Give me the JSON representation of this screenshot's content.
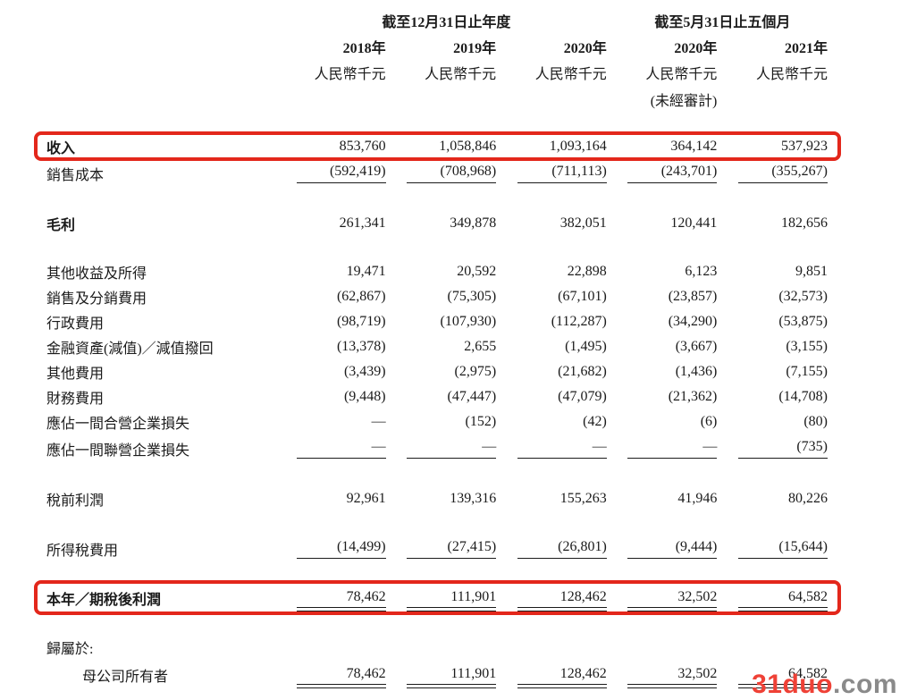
{
  "header": {
    "group_annual": "截至12月31日止年度",
    "group_five_months": "截至5月31日止五個月",
    "columns": [
      {
        "year": "2018年",
        "unit": "人民幣千元",
        "note": ""
      },
      {
        "year": "2019年",
        "unit": "人民幣千元",
        "note": ""
      },
      {
        "year": "2020年",
        "unit": "人民幣千元",
        "note": ""
      },
      {
        "year": "2020年",
        "unit": "人民幣千元",
        "note": "(未經審計)"
      },
      {
        "year": "2021年",
        "unit": "人民幣千元",
        "note": ""
      }
    ]
  },
  "table": {
    "rows": [
      {
        "label": "收入",
        "values": [
          "853,760",
          "1,058,846",
          "1,093,164",
          "364,142",
          "537,923"
        ],
        "bold": true,
        "highlight": true
      },
      {
        "label": "銷售成本",
        "values": [
          "(592,419)",
          "(708,968)",
          "(711,113)",
          "(243,701)",
          "(355,267)"
        ],
        "rule": "single"
      },
      {
        "spacer": 26
      },
      {
        "label": "毛利",
        "values": [
          "261,341",
          "349,878",
          "382,051",
          "120,441",
          "182,656"
        ],
        "bold": true
      },
      {
        "spacer": 26
      },
      {
        "label": "其他收益及所得",
        "values": [
          "19,471",
          "20,592",
          "22,898",
          "6,123",
          "9,851"
        ]
      },
      {
        "label": "銷售及分銷費用",
        "values": [
          "(62,867)",
          "(75,305)",
          "(67,101)",
          "(23,857)",
          "(32,573)"
        ]
      },
      {
        "label": "行政費用",
        "values": [
          "(98,719)",
          "(107,930)",
          "(112,287)",
          "(34,290)",
          "(53,875)"
        ]
      },
      {
        "label": "金融資產(減值)／減值撥回",
        "values": [
          "(13,378)",
          "2,655",
          "(1,495)",
          "(3,667)",
          "(3,155)"
        ]
      },
      {
        "label": "其他費用",
        "values": [
          "(3,439)",
          "(2,975)",
          "(21,682)",
          "(1,436)",
          "(7,155)"
        ]
      },
      {
        "label": "財務費用",
        "values": [
          "(9,448)",
          "(47,447)",
          "(47,079)",
          "(21,362)",
          "(14,708)"
        ]
      },
      {
        "label": "應佔一間合營企業損失",
        "values": [
          "—",
          "(152)",
          "(42)",
          "(6)",
          "(80)"
        ]
      },
      {
        "label": "應佔一間聯營企業損失",
        "values": [
          "—",
          "—",
          "—",
          "—",
          "(735)"
        ],
        "rule": "single"
      },
      {
        "spacer": 26
      },
      {
        "label": "稅前利潤",
        "values": [
          "92,961",
          "139,316",
          "155,263",
          "41,946",
          "80,226"
        ]
      },
      {
        "spacer": 26
      },
      {
        "label": "所得稅費用",
        "values": [
          "(14,499)",
          "(27,415)",
          "(26,801)",
          "(9,444)",
          "(15,644)"
        ],
        "rule": "single"
      },
      {
        "spacer": 22
      },
      {
        "label": "本年／期稅後利潤",
        "values": [
          "78,462",
          "111,901",
          "128,462",
          "32,502",
          "64,582"
        ],
        "bold": true,
        "rule": "double",
        "highlight": true
      },
      {
        "spacer": 24
      },
      {
        "label": "歸屬於:",
        "values": [
          "",
          "",
          "",
          "",
          ""
        ]
      },
      {
        "label": "母公司所有者",
        "values": [
          "78,462",
          "111,901",
          "128,462",
          "32,502",
          "64,582"
        ],
        "rule": "double",
        "indent": true
      }
    ]
  },
  "colors": {
    "text": "#1b1b1b",
    "highlight_box": "#e3271b",
    "watermark_brand": "#ef4136",
    "watermark_suffix": "#8a8a8a"
  },
  "watermark": {
    "brand": "31duo",
    "suffix": ".com"
  }
}
